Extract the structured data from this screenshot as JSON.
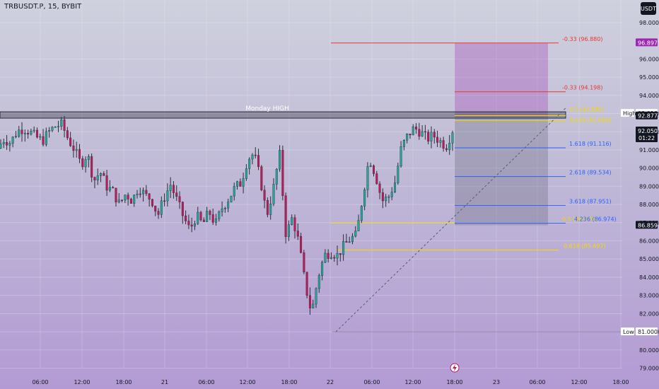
{
  "header": {
    "symbol_title": "TRBUSDT.P, 15, BYBIT",
    "currency_label": "USDT"
  },
  "colors": {
    "up": "#26a69a",
    "down": "#c2185b",
    "candle": "#2a2e39",
    "fib_blue": "#2962ff",
    "fib_yellow": "#f5d800",
    "fib_red": "#e53935",
    "last_price_bg": "#131722",
    "target_bg": "#9c27b0"
  },
  "chart_data": {
    "type": "candlestick",
    "title": "TRBUSDT.P, 15, BYBIT",
    "ylim": [
      78.6,
      99.2
    ],
    "x_ticks": [
      "06:00",
      "12:00",
      "18:00",
      "21",
      "06:00",
      "12:00",
      "18:00",
      "22",
      "06:00",
      "12:00",
      "18:00",
      "23",
      "06:00",
      "12:00",
      "18:00"
    ],
    "y_ticks": [
      "98.000",
      "96.000",
      "95.000",
      "94.000",
      "93.000",
      "92.000",
      "91.000",
      "90.000",
      "89.000",
      "88.000",
      "87.000",
      "86.000",
      "85.000",
      "84.000",
      "83.000",
      "82.000",
      "81.000",
      "80.000",
      "79.000"
    ],
    "y_tick_values": [
      98,
      96,
      95,
      94,
      93,
      92,
      91,
      90,
      89,
      88,
      87,
      86,
      85,
      84,
      83,
      82,
      81,
      80,
      79
    ],
    "price_path": [
      91.1,
      91.6,
      91.4,
      92.0,
      92.2,
      92.0,
      91.7,
      91.5,
      92.0,
      92.3,
      92.4,
      91.6,
      91.0,
      90.2,
      90.8,
      89.3,
      89.8,
      89.0,
      88.7,
      88.0,
      88.6,
      88.2,
      89.0,
      88.5,
      88.3,
      87.4,
      88.4,
      89.1,
      88.2,
      87.3,
      86.6,
      87.4,
      86.9,
      87.6,
      86.9,
      87.8,
      88.3,
      88.9,
      89.2,
      90.5,
      90.8,
      89.4,
      87.4,
      88.8,
      90.8,
      86.3,
      87.3,
      85.9,
      83.6,
      82.0,
      84.0,
      85.2,
      85.4,
      85.2,
      85.7,
      86.1,
      86.3,
      88.5,
      90.6,
      89.6,
      88.2,
      88.4,
      89.2,
      91.1,
      91.8,
      92.2,
      92.0,
      91.6,
      91.8,
      91.5,
      91.2,
      92.1
    ],
    "series": [
      {
        "name": "TRBUSDT.P",
        "last": "92.050"
      }
    ],
    "zones": {
      "monday_high_label": "Monday HIGH",
      "monday_high": 92.98
    },
    "fib_levels": [
      {
        "label": "-0.33 (96.880)",
        "value": 96.88,
        "color": "red"
      },
      {
        "label": "-0.33 (94.198)",
        "value": 94.198,
        "color": "red"
      },
      {
        "label": "0.5 (92.885)",
        "value": 92.885,
        "color": "yellow"
      },
      {
        "label": "0.618 (92.606)",
        "value": 92.606,
        "color": "yellow"
      },
      {
        "label": "1.618 (91.116)",
        "value": 91.116,
        "color": "blue"
      },
      {
        "label": "2.618 (89.534)",
        "value": 89.534,
        "color": "blue"
      },
      {
        "label": "3.618 (87.951)",
        "value": 87.951,
        "color": "blue"
      },
      {
        "label": "0.5 (86.974)",
        "value": 86.974,
        "color": "yellow"
      },
      {
        "label": "4.236 (86.974)",
        "value": 86.974,
        "color": "blue"
      },
      {
        "label": "0.618 (85.497)",
        "value": 85.497,
        "color": "yellow"
      }
    ],
    "price_labels": [
      {
        "label": "96.897",
        "value": 96.897,
        "style": "target"
      },
      {
        "label": "93.016",
        "value": 93.016,
        "style": "plain",
        "tag": "High"
      },
      {
        "label": "92.877",
        "value": 92.877,
        "style": "dark"
      },
      {
        "label": "92.050",
        "value": 92.05,
        "style": "last",
        "sub": "01:22"
      },
      {
        "label": "86.859",
        "value": 86.859,
        "style": "dark"
      },
      {
        "label": "81.000",
        "value": 81.0,
        "style": "plain",
        "tag": "Low"
      }
    ],
    "position": {
      "entry": 92.877,
      "target": 96.88,
      "stop": 86.859
    }
  }
}
